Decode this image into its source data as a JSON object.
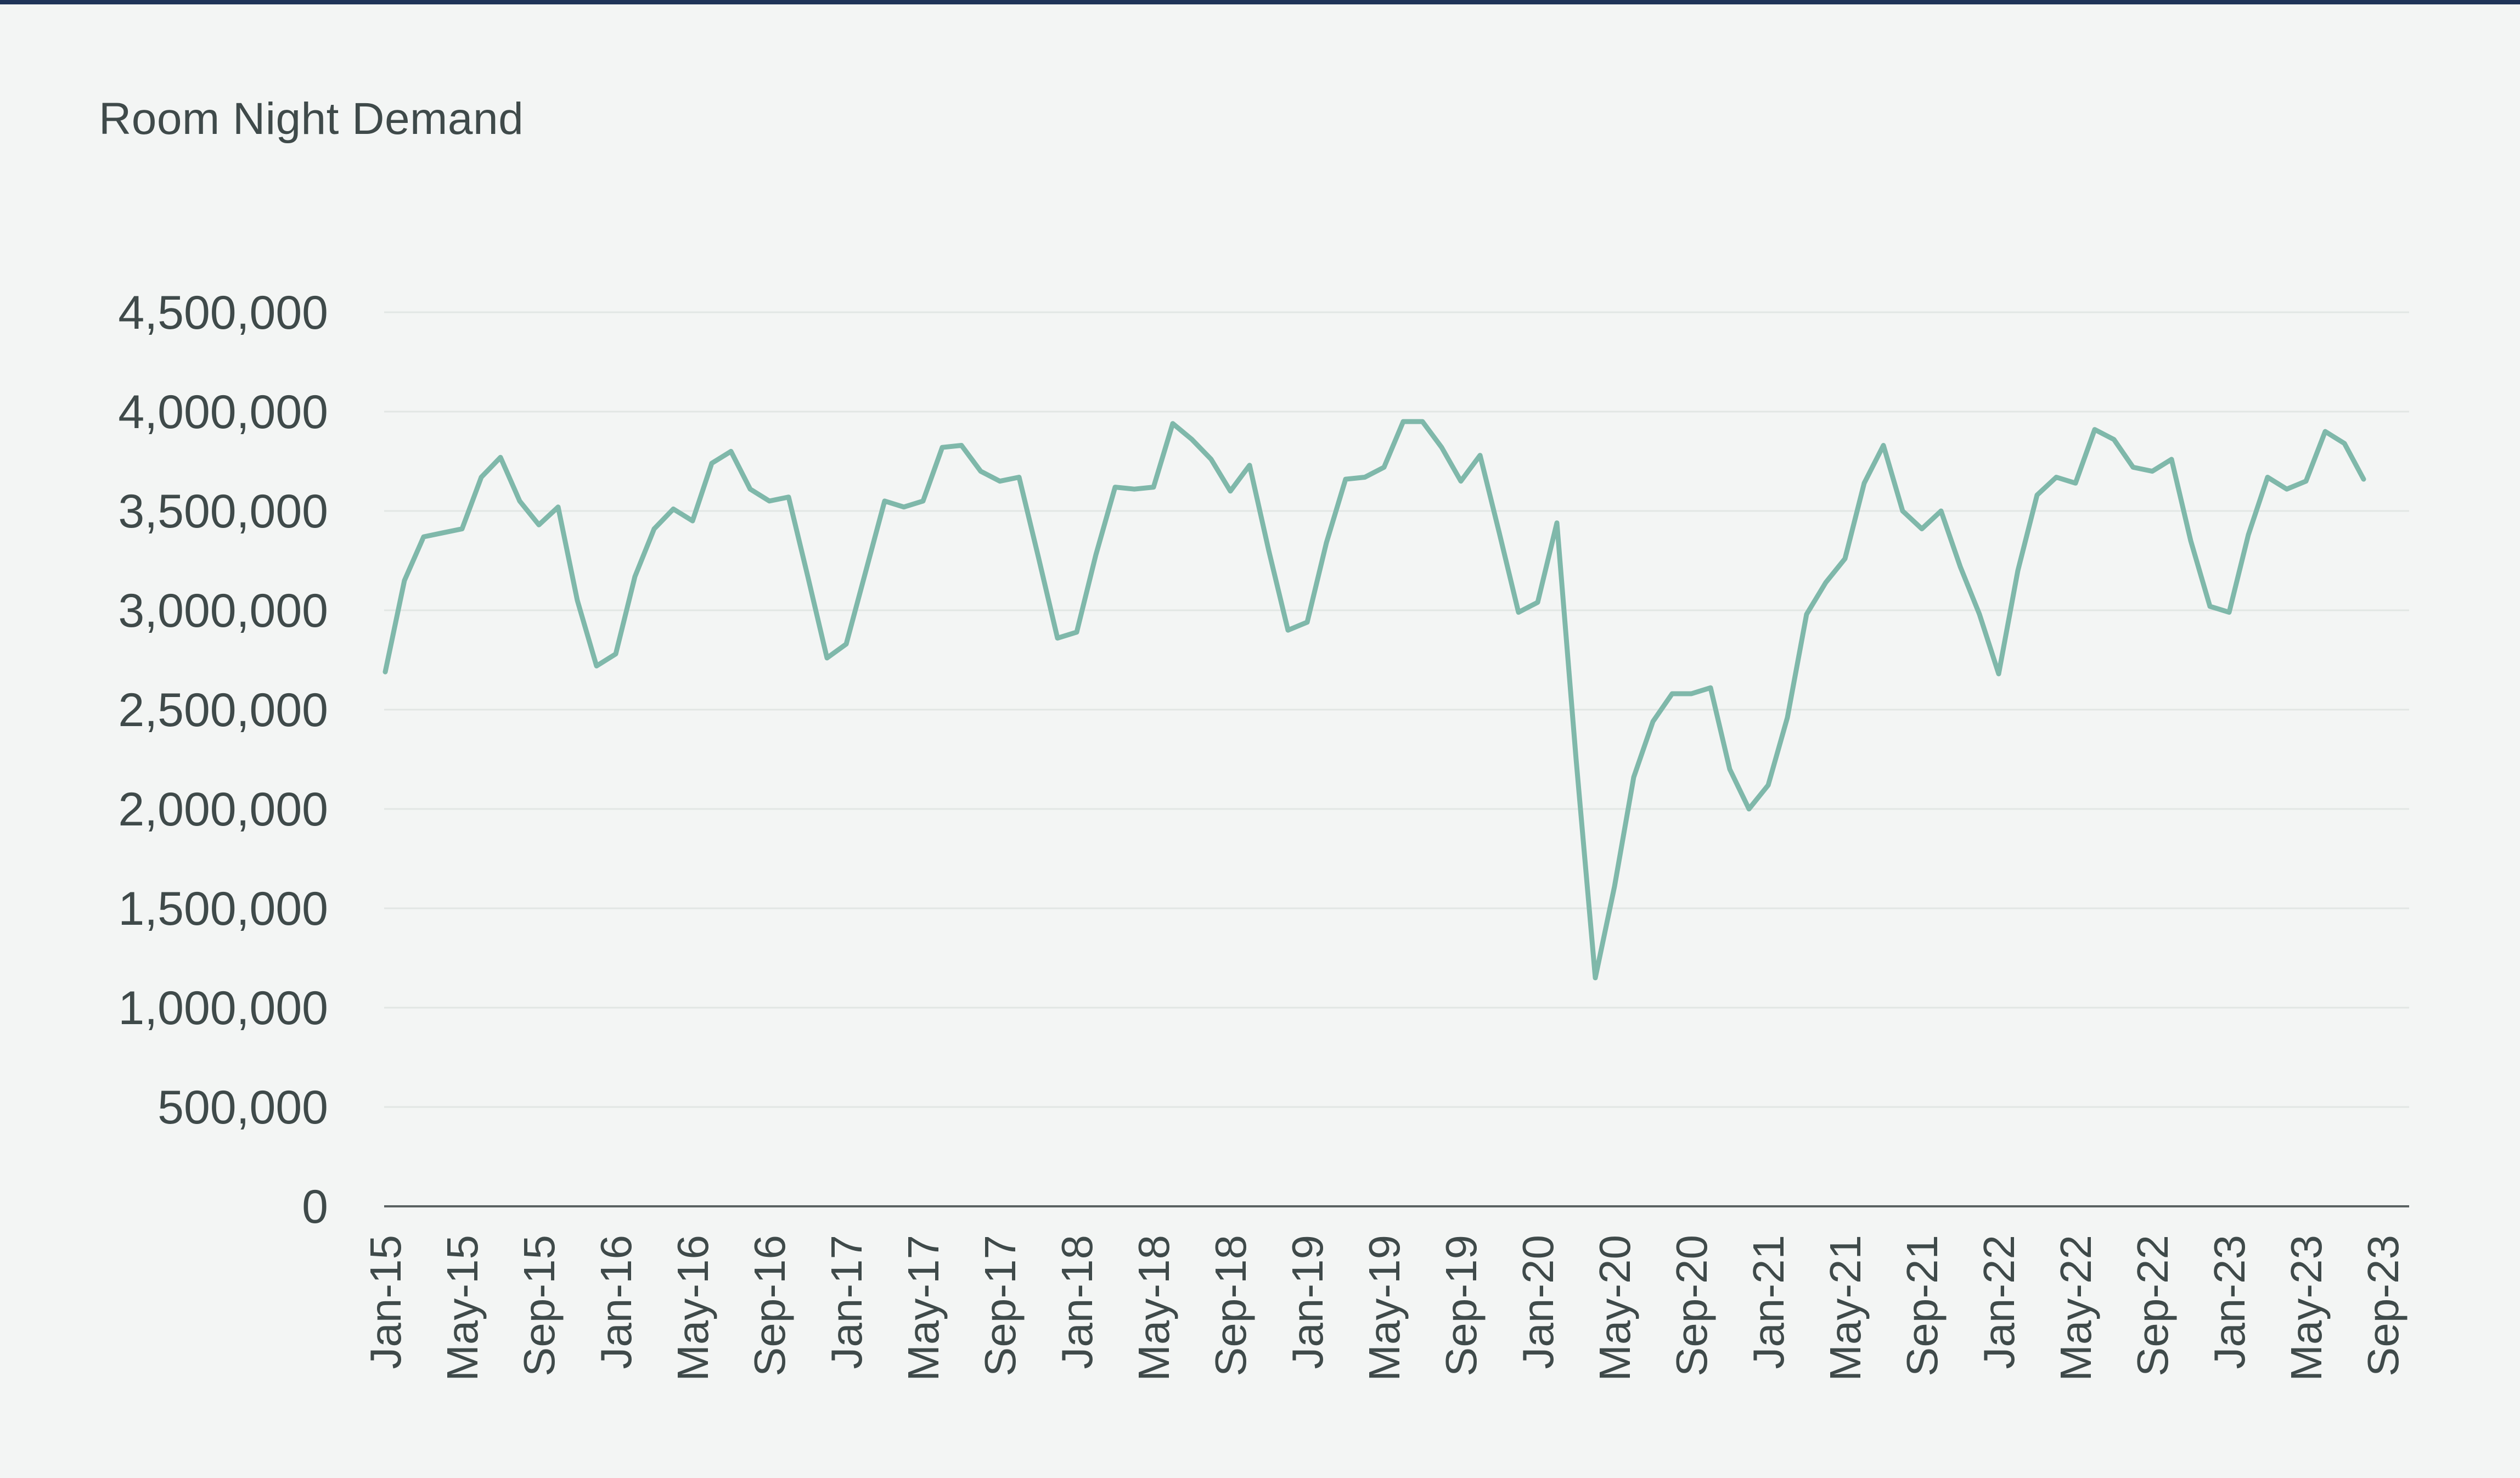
{
  "chart_data": {
    "type": "line",
    "title": "Room Night Demand",
    "xlabel": "",
    "ylabel": "",
    "ylim": [
      0,
      4500000
    ],
    "yticks": [
      0,
      500000,
      1000000,
      1500000,
      2000000,
      2500000,
      3000000,
      3500000,
      4000000,
      4500000
    ],
    "ytick_labels": [
      "0",
      "500,000",
      "1,000,000",
      "1,500,000",
      "2,000,000",
      "2,500,000",
      "3,000,000",
      "3,500,000",
      "4,000,000",
      "4,500,000"
    ],
    "xtick_labels": [
      "Jan-15",
      "May-15",
      "Sep-15",
      "Jan-16",
      "May-16",
      "Sep-16",
      "Jan-17",
      "May-17",
      "Sep-17",
      "Jan-18",
      "May-18",
      "Sep-18",
      "Jan-19",
      "May-19",
      "Sep-19",
      "Jan-20",
      "May-20",
      "Sep-20",
      "Jan-21",
      "May-21",
      "Sep-21",
      "Jan-22",
      "May-22",
      "Sep-22",
      "Jan-23",
      "May-23",
      "Sep-23"
    ],
    "xtick_month_index": [
      0,
      4,
      8,
      12,
      16,
      20,
      24,
      28,
      32,
      36,
      40,
      44,
      48,
      52,
      56,
      60,
      64,
      68,
      72,
      76,
      80,
      84,
      88,
      92,
      96,
      100,
      104
    ],
    "x_range_months": [
      0,
      104
    ],
    "grid": true,
    "line_color": "#7fb8aa",
    "series": [
      {
        "values": [
          2690000,
          3150000,
          3370000,
          3390000,
          3410000,
          3670000,
          3770000,
          3550000,
          3430000,
          3520000,
          3050000,
          2720000,
          2780000,
          3170000,
          3410000,
          3510000,
          3450000,
          3740000,
          3800000,
          3610000,
          3550000,
          3570000,
          3170000,
          2760000,
          2830000,
          3190000,
          3550000,
          3520000,
          3550000,
          3820000,
          3830000,
          3700000,
          3650000,
          3670000,
          3270000,
          2860000,
          2890000,
          3280000,
          3620000,
          3610000,
          3620000,
          3940000,
          3860000,
          3760000,
          3600000,
          3730000,
          3300000,
          2900000,
          2940000,
          3340000,
          3660000,
          3670000,
          3720000,
          3950000,
          3950000,
          3820000,
          3650000,
          3780000,
          3390000,
          2990000,
          3040000,
          3440000,
          2250000,
          1150000,
          1610000,
          2160000,
          2440000,
          2580000,
          2580000,
          2610000,
          2200000,
          2000000,
          2120000,
          2460000,
          2980000,
          3140000,
          3260000,
          3640000,
          3830000,
          3500000,
          3410000,
          3500000,
          3220000,
          2980000,
          2680000,
          3200000,
          3580000,
          3670000,
          3640000,
          3910000,
          3860000,
          3720000,
          3700000,
          3760000,
          3350000,
          3020000,
          2990000,
          3380000,
          3670000,
          3610000,
          3650000,
          3900000,
          3840000,
          3660000
        ]
      }
    ]
  }
}
